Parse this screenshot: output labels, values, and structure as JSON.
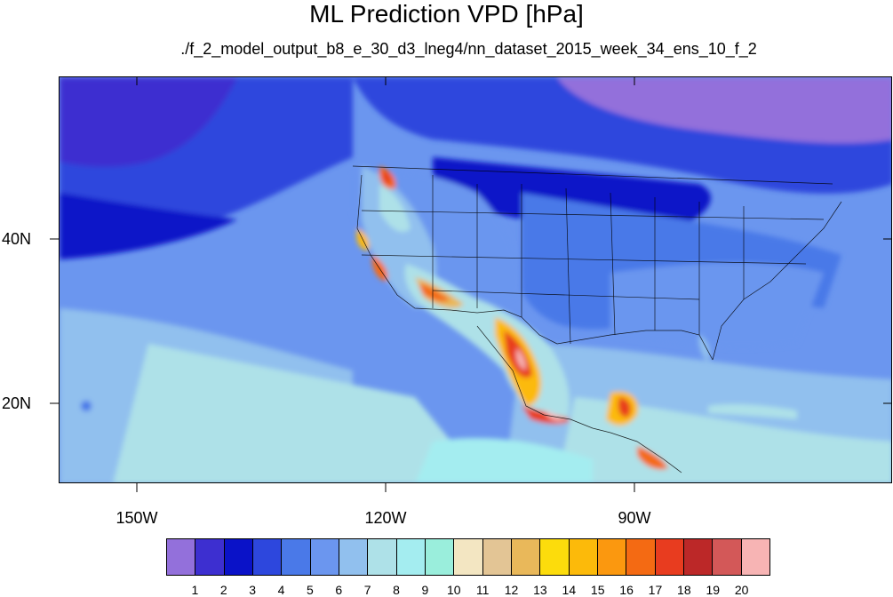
{
  "title": "ML Prediction VPD [hPa]",
  "subtitle": "./f_2_model_output_b8_e_30_d3_lneg4/nn_dataset_2015_week_34_ens_10_f_2",
  "lat_labels": [
    "40N",
    "20N"
  ],
  "lon_labels": [
    "150W",
    "120W",
    "90W"
  ],
  "colorbar": {
    "labels": [
      "1",
      "2",
      "3",
      "4",
      "5",
      "6",
      "7",
      "8",
      "9",
      "10",
      "11",
      "12",
      "13",
      "14",
      "15",
      "16",
      "17",
      "18",
      "19",
      "20"
    ],
    "colors": [
      "#9370db",
      "#3d2fd0",
      "#0a12c8",
      "#2d47dd",
      "#4a79e8",
      "#6b96ef",
      "#91c0ee",
      "#aee1e8",
      "#a4edf0",
      "#9aeedc",
      "#f3e6c2",
      "#e3c595",
      "#e9b85a",
      "#fcdc0c",
      "#fcba0a",
      "#fb980f",
      "#f46a13",
      "#e83c1f",
      "#bc2828",
      "#d35858",
      "#f7b4b4"
    ]
  }
}
